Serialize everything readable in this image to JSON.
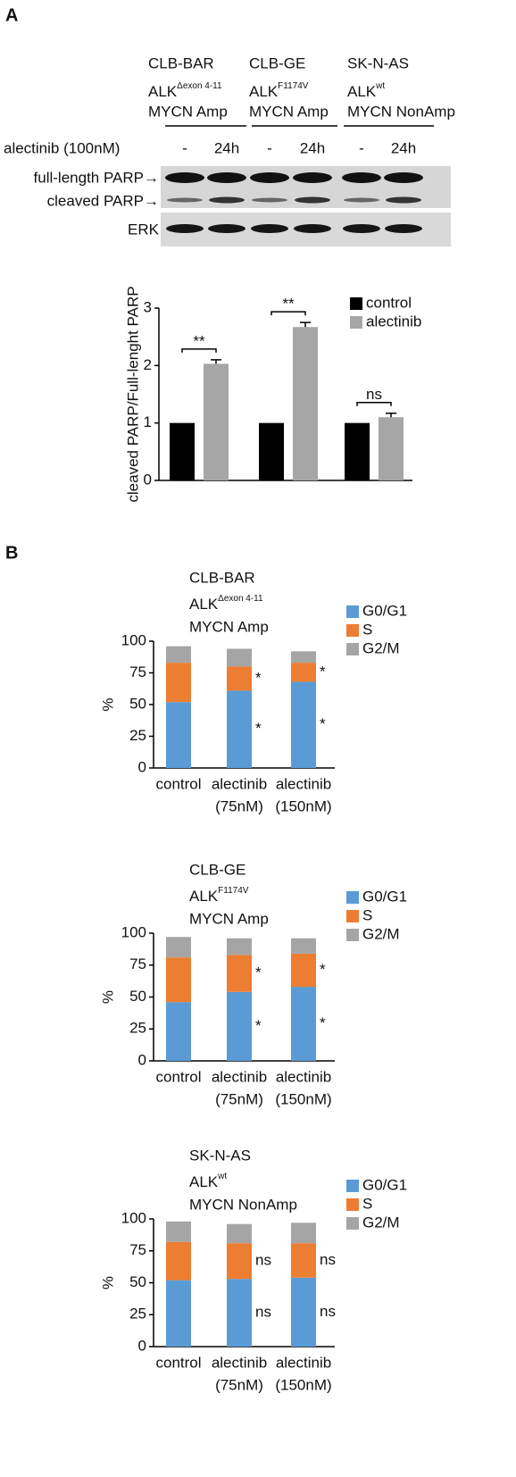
{
  "panel_a": {
    "label": "A",
    "cell_lines": [
      {
        "name": "CLB-BAR",
        "gene": "ALK",
        "gene_sup": "Δexon 4-11",
        "status": "MYCN Amp"
      },
      {
        "name": "CLB-GE",
        "gene": "ALK",
        "gene_sup": "F1174V",
        "status": "MYCN Amp"
      },
      {
        "name": "SK-N-AS",
        "gene": "ALK",
        "gene_sup": "wt",
        "status": "MYCN NonAmp"
      }
    ],
    "treatment_label": "alectinib (100nM)",
    "lanes": [
      "-",
      "24h",
      "-",
      "24h",
      "-",
      "24h"
    ],
    "blot_labels": [
      "full-length PARP→",
      "cleaved PARP→",
      "ERK"
    ]
  },
  "panel_b": {
    "label": "B"
  },
  "chart_data": [
    {
      "type": "bar",
      "ylabel": "cleaved PARP/Full-lenght PARP",
      "categories": [
        null,
        null,
        null
      ],
      "series": [
        {
          "name": "control",
          "color": "#000000",
          "values": [
            1,
            1,
            1
          ]
        },
        {
          "name": "alectinib",
          "color": "#a6a6a6",
          "values": [
            2.03,
            2.67,
            1.1
          ],
          "errors": [
            0.07,
            0.08,
            0.07
          ]
        }
      ],
      "significance": [
        "**",
        "**",
        "ns"
      ],
      "ylim": [
        0,
        3
      ],
      "yticks": [
        0,
        1,
        2,
        3
      ]
    },
    {
      "type": "stacked_bar",
      "title": "CLB-BAR",
      "gene": "ALK",
      "gene_sup": "Δexon 4-11",
      "subtitle": "MYCN Amp",
      "ylabel": "%",
      "categories": [
        "control",
        "alectinib",
        "alectinib"
      ],
      "category_sublabels": [
        null,
        "(75nM)",
        "(150nM)"
      ],
      "series": [
        {
          "name": "G0/G1",
          "color": "#5b9bd5",
          "values": [
            52,
            61,
            68
          ],
          "annotations": [
            null,
            "*",
            "*"
          ]
        },
        {
          "name": "S",
          "color": "#ed7d31",
          "values": [
            31,
            19,
            15
          ],
          "annotations": [
            null,
            "*",
            "*"
          ]
        },
        {
          "name": "G2/M",
          "color": "#a5a5a5",
          "values": [
            13,
            14,
            9
          ]
        }
      ],
      "ylim": [
        0,
        100
      ],
      "yticks": [
        0,
        25,
        50,
        75,
        100
      ]
    },
    {
      "type": "stacked_bar",
      "title": "CLB-GE",
      "gene": "ALK",
      "gene_sup": "F1174V",
      "subtitle": "MYCN Amp",
      "ylabel": "%",
      "categories": [
        "control",
        "alectinib",
        "alectinib"
      ],
      "category_sublabels": [
        null,
        "(75nM)",
        "(150nM)"
      ],
      "series": [
        {
          "name": "G0/G1",
          "color": "#5b9bd5",
          "values": [
            46,
            54,
            58
          ],
          "annotations": [
            null,
            "*",
            "*"
          ]
        },
        {
          "name": "S",
          "color": "#ed7d31",
          "values": [
            35,
            29,
            26
          ],
          "annotations": [
            null,
            "*",
            "*"
          ]
        },
        {
          "name": "G2/M",
          "color": "#a5a5a5",
          "values": [
            16,
            13,
            12
          ]
        }
      ],
      "ylim": [
        0,
        100
      ],
      "yticks": [
        0,
        25,
        50,
        75,
        100
      ]
    },
    {
      "type": "stacked_bar",
      "title": "SK-N-AS",
      "gene": "ALK",
      "gene_sup": "wt",
      "subtitle": "MYCN NonAmp",
      "ylabel": "%",
      "categories": [
        "control",
        "alectinib",
        "alectinib"
      ],
      "category_sublabels": [
        null,
        "(75nM)",
        "(150nM)"
      ],
      "series": [
        {
          "name": "G0/G1",
          "color": "#5b9bd5",
          "values": [
            52,
            53,
            54
          ],
          "annotations": [
            null,
            "ns",
            "ns"
          ]
        },
        {
          "name": "S",
          "color": "#ed7d31",
          "values": [
            30,
            28,
            27
          ],
          "annotations": [
            null,
            "ns",
            "ns"
          ]
        },
        {
          "name": "G2/M",
          "color": "#a5a5a5",
          "values": [
            16,
            15,
            16
          ]
        }
      ],
      "ylim": [
        0,
        100
      ],
      "yticks": [
        0,
        25,
        50,
        75,
        100
      ]
    }
  ]
}
